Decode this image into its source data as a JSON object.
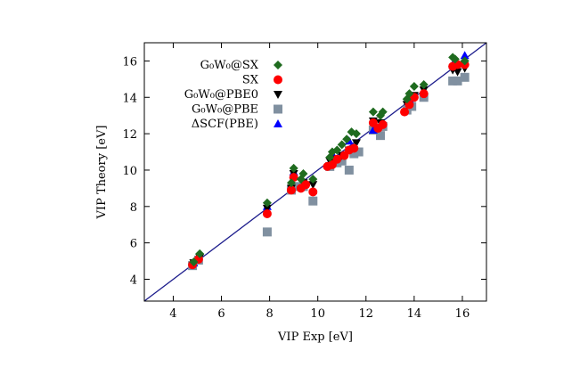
{
  "chart_data": {
    "type": "scatter",
    "xlabel": "VIP Exp [eV]",
    "ylabel": "VIP Theory [eV]",
    "xlim": [
      2.8,
      17
    ],
    "ylim": [
      2.8,
      17
    ],
    "xticks": [
      4,
      6,
      8,
      10,
      12,
      14,
      16
    ],
    "yticks": [
      4,
      6,
      8,
      10,
      12,
      14,
      16
    ],
    "grid": false,
    "legend_position": "top-left inside",
    "reference_line": {
      "from": [
        2.8,
        2.8
      ],
      "to": [
        17,
        17
      ],
      "color": "#1c1c8c"
    },
    "series": [
      {
        "name": "G0W0@SX",
        "legend_label": "G₀W₀@SX",
        "marker": "diamond",
        "color": "#1f6b1f",
        "points": [
          [
            4.85,
            4.95
          ],
          [
            5.1,
            5.4
          ],
          [
            7.9,
            8.2
          ],
          [
            8.9,
            9.3
          ],
          [
            9.0,
            10.1
          ],
          [
            9.3,
            9.5
          ],
          [
            9.4,
            9.8
          ],
          [
            9.8,
            9.5
          ],
          [
            10.5,
            10.7
          ],
          [
            10.6,
            11.0
          ],
          [
            10.8,
            11.1
          ],
          [
            11.0,
            11.4
          ],
          [
            11.2,
            11.7
          ],
          [
            11.4,
            12.1
          ],
          [
            11.6,
            12.0
          ],
          [
            12.3,
            13.2
          ],
          [
            12.6,
            13.0
          ],
          [
            12.7,
            13.2
          ],
          [
            13.7,
            13.9
          ],
          [
            13.8,
            14.2
          ],
          [
            14.0,
            14.6
          ],
          [
            14.4,
            14.7
          ],
          [
            15.6,
            16.2
          ],
          [
            15.7,
            16.1
          ],
          [
            16.1,
            16.0
          ]
        ]
      },
      {
        "name": "SX",
        "legend_label": "SX",
        "marker": "circle",
        "color": "#ff0000",
        "points": [
          [
            4.8,
            4.8
          ],
          [
            5.05,
            5.1
          ],
          [
            7.9,
            7.6
          ],
          [
            8.9,
            8.9
          ],
          [
            9.0,
            9.6
          ],
          [
            9.3,
            9.0
          ],
          [
            9.5,
            9.2
          ],
          [
            9.8,
            8.8
          ],
          [
            10.4,
            10.2
          ],
          [
            10.6,
            10.3
          ],
          [
            10.8,
            10.6
          ],
          [
            11.1,
            10.8
          ],
          [
            11.3,
            11.1
          ],
          [
            11.5,
            11.2
          ],
          [
            12.3,
            12.6
          ],
          [
            12.5,
            12.3
          ],
          [
            12.7,
            12.5
          ],
          [
            13.6,
            13.2
          ],
          [
            13.8,
            13.6
          ],
          [
            14.0,
            14.0
          ],
          [
            14.4,
            14.2
          ],
          [
            15.6,
            15.7
          ],
          [
            15.8,
            15.8
          ],
          [
            16.1,
            15.8
          ]
        ]
      },
      {
        "name": "G0W0@PBE0",
        "legend_label": "G₀W₀@PBE0",
        "marker": "triangle-down",
        "color": "#000000",
        "points": [
          [
            4.85,
            4.9
          ],
          [
            5.1,
            5.2
          ],
          [
            7.9,
            7.9
          ],
          [
            8.9,
            9.0
          ],
          [
            9.0,
            9.8
          ],
          [
            9.4,
            9.3
          ],
          [
            9.8,
            9.2
          ],
          [
            10.5,
            10.5
          ],
          [
            10.7,
            10.6
          ],
          [
            11.0,
            10.8
          ],
          [
            11.3,
            11.1
          ],
          [
            11.6,
            11.5
          ],
          [
            12.3,
            12.7
          ],
          [
            12.6,
            12.6
          ],
          [
            13.7,
            13.6
          ],
          [
            14.0,
            14.1
          ],
          [
            14.4,
            14.4
          ],
          [
            15.6,
            15.5
          ],
          [
            15.8,
            15.4
          ],
          [
            16.1,
            15.6
          ]
        ]
      },
      {
        "name": "G0W0@PBE",
        "legend_label": "G₀W₀@PBE",
        "marker": "square",
        "color": "#8090a0",
        "points": [
          [
            4.8,
            4.75
          ],
          [
            5.05,
            5.05
          ],
          [
            7.9,
            6.6
          ],
          [
            8.9,
            8.9
          ],
          [
            9.1,
            9.1
          ],
          [
            9.4,
            9.1
          ],
          [
            9.8,
            8.3
          ],
          [
            10.5,
            10.2
          ],
          [
            10.8,
            10.4
          ],
          [
            11.0,
            10.5
          ],
          [
            11.3,
            10.0
          ],
          [
            11.5,
            10.9
          ],
          [
            11.7,
            11.0
          ],
          [
            12.3,
            12.2
          ],
          [
            12.6,
            11.9
          ],
          [
            12.7,
            12.4
          ],
          [
            13.7,
            13.3
          ],
          [
            13.9,
            13.5
          ],
          [
            14.4,
            14.0
          ],
          [
            15.6,
            14.9
          ],
          [
            15.8,
            14.9
          ],
          [
            16.1,
            15.1
          ]
        ]
      },
      {
        "name": "ΔSCF(PBE)",
        "legend_label": "ΔSCF(PBE)",
        "marker": "triangle-up",
        "color": "#0000ff",
        "points": [
          [
            4.85,
            4.9
          ],
          [
            7.9,
            8.0
          ],
          [
            9.0,
            9.9
          ],
          [
            10.6,
            10.9
          ],
          [
            11.3,
            11.6
          ],
          [
            12.3,
            12.2
          ],
          [
            13.8,
            13.9
          ],
          [
            15.6,
            15.8
          ],
          [
            16.1,
            16.3
          ]
        ]
      }
    ]
  }
}
